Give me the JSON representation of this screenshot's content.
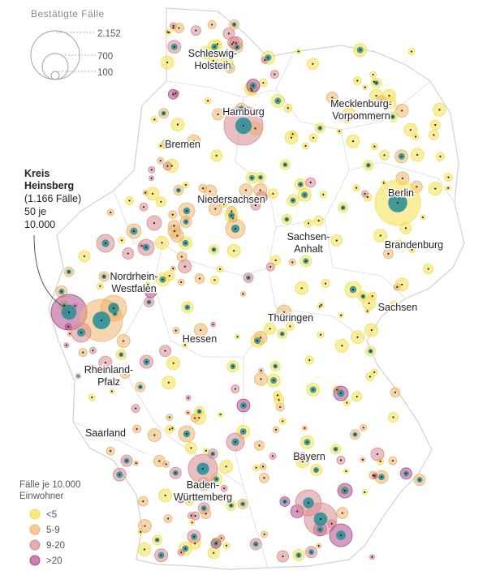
{
  "size_legend": {
    "title": "Bestätigte Fälle",
    "values": [
      "2.152",
      "700",
      "100"
    ]
  },
  "states": [
    {
      "id": "schleswig-holstein",
      "lines": [
        "Schleswig-",
        "Holstein"
      ]
    },
    {
      "id": "hamburg",
      "lines": [
        "Hamburg"
      ]
    },
    {
      "id": "mecklenburg-vorpommern",
      "lines": [
        "Mecklenburg-",
        "Vorpommern"
      ]
    },
    {
      "id": "bremen",
      "lines": [
        "Bremen"
      ]
    },
    {
      "id": "berlin",
      "lines": [
        "Berlin"
      ]
    },
    {
      "id": "niedersachsen",
      "lines": [
        "Niedersachsen"
      ]
    },
    {
      "id": "brandenburg",
      "lines": [
        "Brandenburg"
      ]
    },
    {
      "id": "sachsen-anhalt",
      "lines": [
        "Sachsen-",
        "Anhalt"
      ]
    },
    {
      "id": "nordrhein-westfalen",
      "lines": [
        "Nordrhein-",
        "Westfalen"
      ]
    },
    {
      "id": "sachsen",
      "lines": [
        "Sachsen"
      ]
    },
    {
      "id": "thueringen",
      "lines": [
        "Thüringen"
      ]
    },
    {
      "id": "hessen",
      "lines": [
        "Hessen"
      ]
    },
    {
      "id": "rheinland-pfalz",
      "lines": [
        "Rheinland-",
        "Pfalz"
      ]
    },
    {
      "id": "saarland",
      "lines": [
        "Saarland"
      ]
    },
    {
      "id": "bayern",
      "lines": [
        "Bayern"
      ]
    },
    {
      "id": "baden-wuerttemberg",
      "lines": [
        "Baden-",
        "Württemberg"
      ]
    }
  ],
  "annotation": {
    "title_lines": [
      "Kreis",
      "Heinsberg"
    ],
    "detail_lines": [
      "(1.166 Fälle)",
      "50 je",
      "10.000"
    ]
  },
  "color_legend": {
    "title_lines": [
      "Fälle je 10.000",
      "Einwohner"
    ],
    "items": [
      {
        "label": "<5",
        "color": "#f4e04d"
      },
      {
        "label": "5-9",
        "color": "#eeb46a"
      },
      {
        "label": "9-20",
        "color": "#d98a8e"
      },
      {
        "label": ">20",
        "color": "#b04a8e"
      }
    ]
  },
  "colors": {
    "center": "#2e8f97",
    "border": "#cfcfcf"
  }
}
